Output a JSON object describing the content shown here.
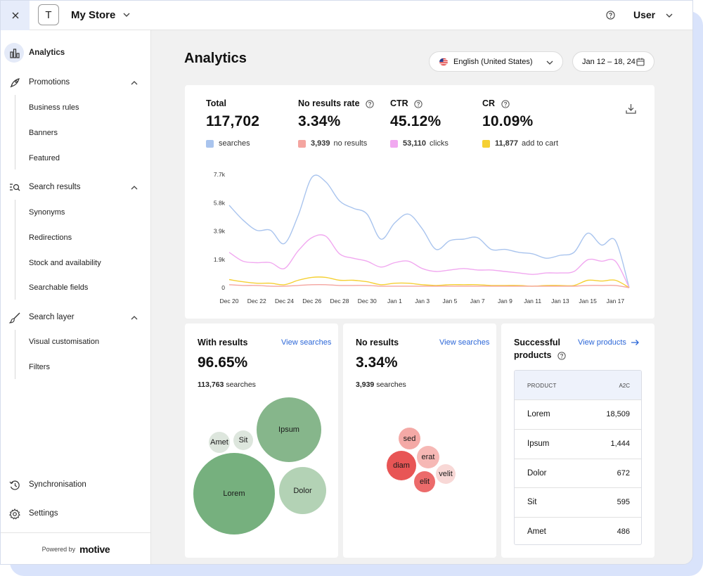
{
  "app": {
    "store_initial": "T",
    "store_name": "My Store",
    "user_name": "User"
  },
  "sidebar": {
    "items": [
      {
        "label": "Analytics",
        "icon": "bar-chart-icon"
      },
      {
        "label": "Promotions",
        "icon": "rocket-icon",
        "children": [
          "Business rules",
          "Banners",
          "Featured"
        ]
      },
      {
        "label": "Search results",
        "icon": "search-list-icon",
        "children": [
          "Synonyms",
          "Redirections",
          "Stock and availability",
          "Searchable fields"
        ]
      },
      {
        "label": "Search layer",
        "icon": "brush-icon",
        "children": [
          "Visual customisation",
          "Filters"
        ]
      },
      {
        "label": "Synchronisation",
        "icon": "history-icon"
      },
      {
        "label": "Settings",
        "icon": "gear-icon"
      }
    ],
    "footer": {
      "powered_by": "Powered by",
      "brand": "motive"
    }
  },
  "main": {
    "title": "Analytics",
    "language": "English (United States)",
    "date_range": "Jan 12 – 18, 24"
  },
  "metrics": [
    {
      "label": "Total",
      "value": "117,702",
      "legend_num": "",
      "legend_text": "searches",
      "color": "#a9c4ee"
    },
    {
      "label": "No results rate",
      "value": "3.34%",
      "legend_num": "3,939",
      "legend_text": "no results",
      "color": "#f4a5a0"
    },
    {
      "label": "CTR",
      "value": "45.12%",
      "legend_num": "53,110",
      "legend_text": "clicks",
      "color": "#f1a8f0"
    },
    {
      "label": "CR",
      "value": "10.09%",
      "legend_num": "11,877",
      "legend_text": "add to cart",
      "color": "#f5d033"
    }
  ],
  "chart_data": {
    "type": "line",
    "x": [
      "Dec 20",
      "Dec 21",
      "Dec 22",
      "Dec 23",
      "Dec 24",
      "Dec 25",
      "Dec 26",
      "Dec 27",
      "Dec 28",
      "Dec 29",
      "Dec 30",
      "Dec 31",
      "Jan 1",
      "Jan 2",
      "Jan 3",
      "Jan 4",
      "Jan 5",
      "Jan 6",
      "Jan 7",
      "Jan 8",
      "Jan 9",
      "Jan 10",
      "Jan 11",
      "Jan 12",
      "Jan 13",
      "Jan 14",
      "Jan 15",
      "Jan 16",
      "Jan 17",
      "Jan 18"
    ],
    "x_tick_labels": [
      "Dec 20",
      "Dec 22",
      "Dec 24",
      "Dec 26",
      "Dec 28",
      "Dec 30",
      "Jan 1",
      "Jan 3",
      "Jan 5",
      "Jan 7",
      "Jan 9",
      "Jan 11",
      "Jan 13",
      "Jan 15",
      "Jan 17"
    ],
    "y_tick_labels": [
      "7.7k",
      "5.8k",
      "3.9k",
      "1.9k",
      "0"
    ],
    "ylim": [
      0,
      7700
    ],
    "series": [
      {
        "name": "searches",
        "color": "#a9c4ee",
        "values": [
          5600,
          4600,
          3900,
          3900,
          3000,
          4900,
          7500,
          7200,
          5900,
          5400,
          5000,
          3300,
          4400,
          5000,
          4000,
          2600,
          3200,
          3300,
          3400,
          2600,
          2600,
          2400,
          2300,
          2000,
          2200,
          2400,
          3700,
          2900,
          3200,
          0
        ]
      },
      {
        "name": "clicks",
        "color": "#f1a8f0",
        "values": [
          2400,
          1800,
          1700,
          1700,
          1300,
          2500,
          3400,
          3500,
          2300,
          2000,
          1800,
          1400,
          1700,
          1800,
          1300,
          1100,
          1200,
          1300,
          1200,
          1200,
          1100,
          1000,
          900,
          1000,
          1000,
          1100,
          1900,
          1800,
          1800,
          0
        ]
      },
      {
        "name": "add to cart",
        "color": "#f5d033",
        "values": [
          550,
          400,
          300,
          300,
          200,
          500,
          700,
          700,
          500,
          500,
          400,
          200,
          300,
          300,
          200,
          150,
          200,
          200,
          200,
          150,
          150,
          150,
          100,
          150,
          150,
          150,
          500,
          450,
          500,
          0
        ]
      },
      {
        "name": "no results",
        "color": "#f4a5a0",
        "values": [
          200,
          150,
          150,
          100,
          100,
          150,
          200,
          200,
          150,
          150,
          150,
          100,
          100,
          100,
          100,
          100,
          100,
          100,
          100,
          100,
          100,
          100,
          100,
          100,
          100,
          100,
          150,
          150,
          150,
          0
        ]
      }
    ]
  },
  "with_results": {
    "title": "With results",
    "link": "View searches",
    "value": "96.65%",
    "count": "113,763",
    "count_label": "searches",
    "bubbles": [
      {
        "label": "Lorem",
        "color": "#76b07e"
      },
      {
        "label": "Ipsum",
        "color": "#86b68b"
      },
      {
        "label": "Dolor",
        "color": "#b3d2b5"
      },
      {
        "label": "Amet",
        "color": "#dde6dd"
      },
      {
        "label": "Sit",
        "color": "#dde6dd"
      }
    ]
  },
  "no_results": {
    "title": "No results",
    "link": "View searches",
    "value": "3.34%",
    "count": "3,939",
    "count_label": "searches",
    "bubbles": [
      {
        "label": "sed",
        "color": "#f4a9a6"
      },
      {
        "label": "erat",
        "color": "#f6b8b5"
      },
      {
        "label": "diam",
        "color": "#e85555"
      },
      {
        "label": "elit",
        "color": "#ec6b6b"
      },
      {
        "label": "velit",
        "color": "#f8d8d6"
      }
    ]
  },
  "successful_products": {
    "title_line1": "Successful",
    "title_line2": "products",
    "link": "View products",
    "col_product": "PRODUCT",
    "col_a2c": "A2C",
    "rows": [
      {
        "name": "Lorem",
        "value": "18,509"
      },
      {
        "name": "Ipsum",
        "value": "1,444"
      },
      {
        "name": "Dolor",
        "value": "672"
      },
      {
        "name": "Sit",
        "value": "595"
      },
      {
        "name": "Amet",
        "value": "486"
      }
    ]
  }
}
